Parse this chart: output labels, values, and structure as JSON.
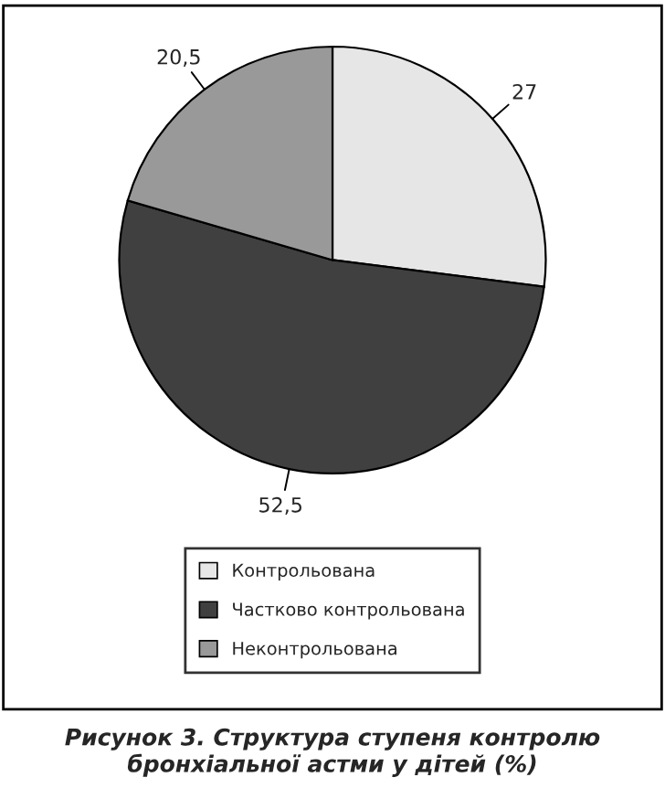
{
  "chart_data": {
    "type": "pie",
    "title": "Рисунок 3. Структура ступеня контролю бронхіальної астми у дітей (%)",
    "categories": [
      "Контрольована",
      "Частково контрольована",
      "Неконтрольована"
    ],
    "values": [
      27,
      52.5,
      20.5
    ],
    "value_labels": [
      "27",
      "52,5",
      "20,5"
    ],
    "colors": [
      "#e6e6e6",
      "#404040",
      "#999999"
    ],
    "legend": "bottom"
  }
}
